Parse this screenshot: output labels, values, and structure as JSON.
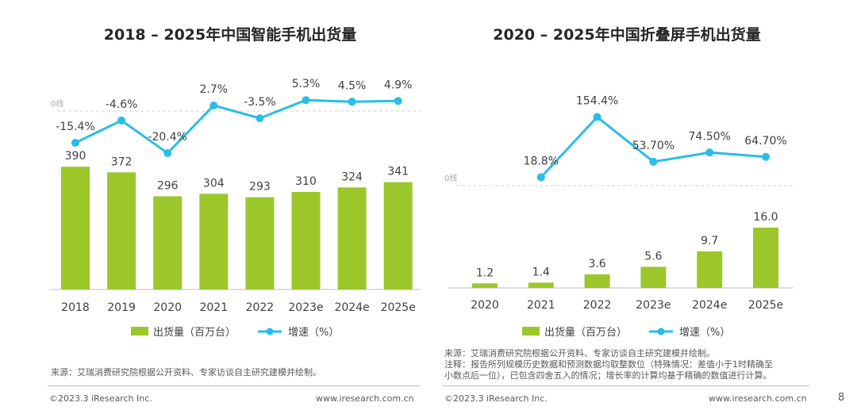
{
  "chart_data": [
    {
      "type": "bar+line",
      "title": "2018 – 2025年中国智能手机出货量",
      "categories": [
        "2018",
        "2019",
        "2020",
        "2021",
        "2022",
        "2023e",
        "2024e",
        "2025e"
      ],
      "series": [
        {
          "name": "出货量（百万台）",
          "type": "bar",
          "values": [
            390,
            372,
            296,
            304,
            293,
            310,
            324,
            341
          ],
          "labels": [
            "390",
            "372",
            "296",
            "304",
            "293",
            "310",
            "324",
            "341"
          ]
        },
        {
          "name": "增速（%）",
          "type": "line",
          "values": [
            -15.4,
            -4.6,
            -20.4,
            2.7,
            -3.5,
            5.3,
            4.5,
            4.9
          ],
          "labels": [
            "-15.4%",
            "-4.6%",
            "-20.4%",
            "2.7%",
            "-3.5%",
            "5.3%",
            "4.5%",
            "4.9%"
          ]
        }
      ],
      "zero_line_label": "0线"
    },
    {
      "type": "bar+line",
      "title": "2020 – 2025年中国折叠屏手机出货量",
      "categories": [
        "2020",
        "2021",
        "2022",
        "2023e",
        "2024e",
        "2025e"
      ],
      "series": [
        {
          "name": "出货量（百万台）",
          "type": "bar",
          "values": [
            1.2,
            1.4,
            3.6,
            5.6,
            9.7,
            16.0
          ],
          "labels": [
            "1.2",
            "1.4",
            "3.6",
            "5.6",
            "9.7",
            "16.0"
          ]
        },
        {
          "name": "增速（%）",
          "type": "line",
          "values": [
            null,
            18.8,
            154.4,
            53.7,
            74.5,
            64.7
          ],
          "labels": [
            "",
            "18.8%",
            "154.4%",
            "53.70%",
            "74.50%",
            "64.70%"
          ]
        }
      ],
      "zero_line_label": "0线"
    }
  ],
  "colors": {
    "bar": "#9bc72b",
    "line": "#29bde8"
  },
  "notes": {
    "left_source": "来源：艾瑞消费研究院根据公开资料、专家访谈自主研究建模并绘制。",
    "right_source": "来源：艾瑞消费研究院根据公开资料、专家访谈自主研究建模并绘制。",
    "right_note1": "注释：报告所列规模历史数据和预测数据均取整数位（特殊情况：差值小于1时精确至",
    "right_note2": "小数点后一位），已包含四舍五入的情况；增长率的计算均基于精确的数值进行计算。"
  },
  "footer": {
    "copyright": "©2023.3 iResearch Inc.",
    "url": "www.iresearch.com.cn",
    "page": "8"
  }
}
